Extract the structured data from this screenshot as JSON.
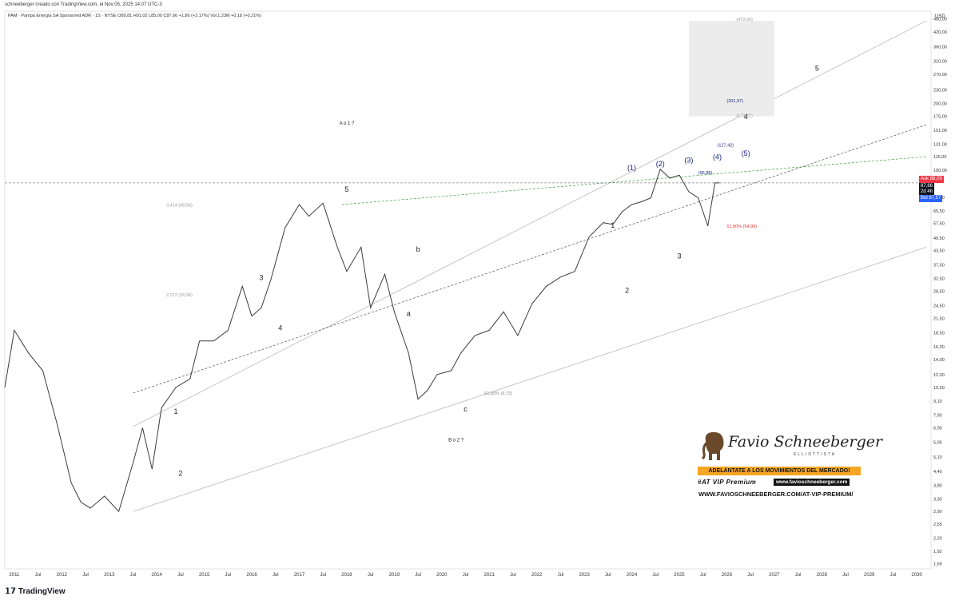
{
  "header": {
    "credit": "schneeberger creado con TradingView.com, el Nov 05, 2025 14:07 UTC-3",
    "symbol_line": "PAM · Pampa Energía SA Sponsored ADR · 1S · NYSE",
    "ohlc": "O89,81  H91,02  L85,00  C87,66  +1,86 (+2,17%)",
    "volume": "Vol.1,23M  +0,18 (+0,21%)"
  },
  "footer": {
    "brand": "TradingView"
  },
  "price_axis": {
    "currency": "USD",
    "ticks": [
      "480,00",
      "420,00",
      "360,00",
      "310,00",
      "270,00",
      "230,00",
      "200,00",
      "175,00",
      "151,00",
      "131,00",
      "115,00",
      "100,00",
      "75,50",
      "65,50",
      "57,50",
      "49,50",
      "43,50",
      "37,50",
      "32,50",
      "28,50",
      "24,50",
      "21,50",
      "18,50",
      "16,00",
      "14,00",
      "12,00",
      "10,50",
      "9,10",
      "7,90",
      "6,90",
      "5,95",
      "5,10",
      "4,40",
      "3,80",
      "3,30",
      "2,90",
      "2,55",
      "2,20",
      "1,92",
      "1,69"
    ],
    "ask_label": "Ask",
    "ask_value": "88,09",
    "last_value": "87,66",
    "last_time": "2d 4h",
    "bid_label": "Bid",
    "bid_value": "87,57"
  },
  "time_axis": {
    "ticks": [
      "2011",
      "Jul",
      "2012",
      "Jul",
      "2013",
      "Jul",
      "2014",
      "Jul",
      "2015",
      "Jul",
      "2016",
      "Jul",
      "2017",
      "Jul",
      "2018",
      "Jul",
      "2019",
      "Jul",
      "2020",
      "Jul",
      "2021",
      "Jul",
      "2022",
      "Jul",
      "2023",
      "Jul",
      "2024",
      "Jul",
      "2025",
      "Jul",
      "2026",
      "Jul",
      "2027",
      "Jul",
      "2028",
      "Jul",
      "2029",
      "Jul",
      "2030"
    ]
  },
  "chart_data": {
    "type": "line",
    "y_scale": "log",
    "ylim": [
      1.6,
      520
    ],
    "xlim": [
      2010.8,
      2030.3
    ],
    "series": [
      {
        "x": [
          2010.8,
          2011.0,
          2011.3,
          2011.6,
          2011.9,
          2012.2,
          2012.4,
          2012.6,
          2012.9,
          2013.2,
          2013.5,
          2013.7,
          2013.9,
          2014.1,
          2014.4,
          2014.7,
          2014.9,
          2015.2,
          2015.5,
          2015.8,
          2016.0,
          2016.2,
          2016.4,
          2016.7,
          2017.0,
          2017.2,
          2017.5,
          2017.8,
          2018.0,
          2018.3,
          2018.5,
          2018.8,
          2019.0,
          2019.3,
          2019.5,
          2019.7,
          2019.9,
          2020.2,
          2020.4,
          2020.7,
          2021.0,
          2021.3,
          2021.6,
          2021.9,
          2022.2,
          2022.5,
          2022.8,
          2023.1,
          2023.4,
          2023.6,
          2023.8,
          2024.0,
          2024.2,
          2024.4,
          2024.6,
          2024.8,
          2025.0,
          2025.2,
          2025.4,
          2025.6,
          2025.75,
          2025.85
        ],
        "values": [
          10.5,
          19,
          15,
          12.5,
          7.2,
          3.9,
          3.2,
          3.0,
          3.4,
          2.9,
          4.8,
          6.9,
          4.5,
          8.5,
          10.5,
          11.5,
          17,
          17,
          19,
          30,
          22,
          24,
          32,
          55,
          70,
          62,
          71,
          45,
          35,
          45,
          24,
          34,
          23,
          15,
          9.3,
          10.2,
          12,
          12.5,
          15,
          18,
          19,
          23,
          18,
          25,
          30,
          33,
          35,
          50,
          58,
          57,
          65,
          70,
          72,
          75,
          101,
          92,
          95,
          80,
          75,
          56,
          87.66,
          87.66
        ]
      }
    ],
    "wave_labels": [
      "1",
      "2",
      "3",
      "4",
      "5",
      "a",
      "b",
      "c",
      "1",
      "2",
      "3",
      "4",
      "5",
      "A o 1 ?",
      "B o 2 ?",
      "(1)",
      "(2)",
      "(3)",
      "(4)",
      "(5)"
    ],
    "fib_labels": [
      "61,80% (9,73)",
      "61,80% (54,99)",
      "3,414 (68,58)",
      "2,272 (26,96)",
      "(470,99)",
      "(201,97)",
      "(173,21)",
      "(127,42)",
      "(95,88)"
    ]
  },
  "badge": {
    "name": "Favio Schneeberger",
    "subtitle": "ELLIOTTISTA",
    "banner": "ADELÁNTATE A LOS MOVIMIENTOS DEL MERCADO!",
    "vip": "#AT VIP Premium",
    "site": "www.favioschneeberger.com",
    "url": "WWW.FAVIOSCHNEEBERGER.COM/AT-VIP-PREMIUM/"
  },
  "colors": {
    "price": "#3c3c3c",
    "ask": "#f23645",
    "bid": "#2962ff",
    "last": "#131722",
    "fib_red": "#e53935",
    "wave_blue": "#1a237e",
    "banner": "#f5a623"
  }
}
